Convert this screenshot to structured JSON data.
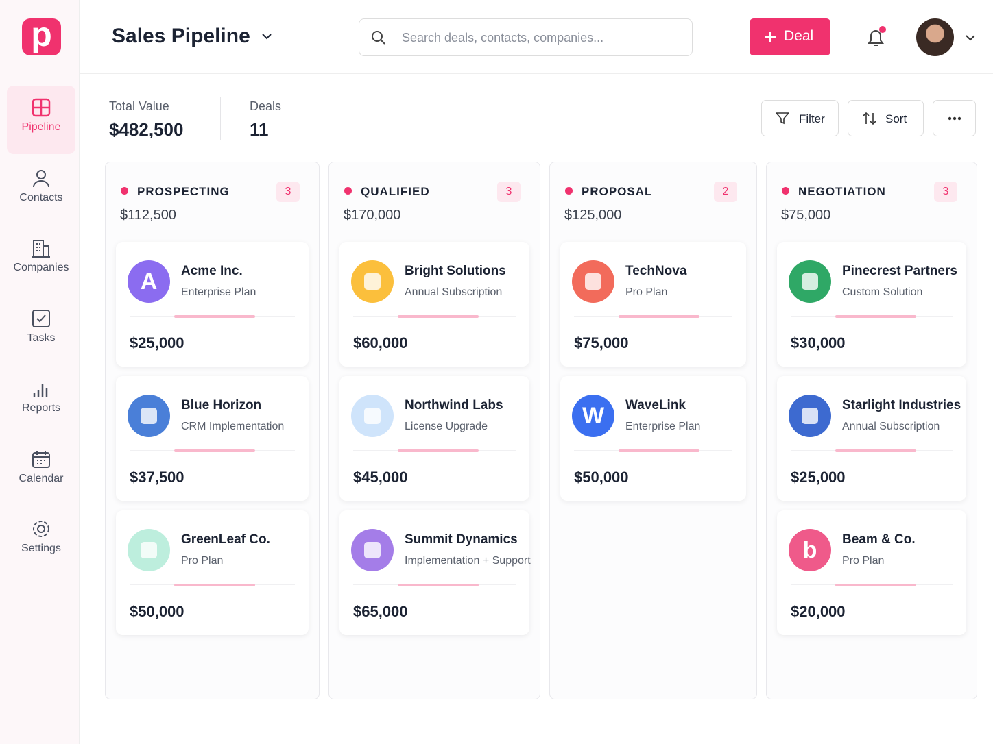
{
  "app": {
    "logo": "p"
  },
  "sidebar": {
    "items": [
      "Pipeline",
      "Contacts",
      "Companies",
      "Tasks",
      "Reports",
      "Calendar",
      "Settings"
    ]
  },
  "header": {
    "title": "Sales Pipeline",
    "search_placeholder": "Search deals, contacts, companies...",
    "new_button": "Deal"
  },
  "summary": [
    {
      "label": "Total Value",
      "value": "$482,500"
    },
    {
      "label": "Deals",
      "value": "11"
    }
  ],
  "toolbar": [
    "Filter",
    "Sort"
  ],
  "columns": [
    {
      "name": "PROSPECTING",
      "count": "3",
      "total": "$112,500",
      "deals": [
        {
          "company": "Acme Inc.",
          "plan": "Enterprise Plan",
          "amount": "$25,000",
          "avatar": "A",
          "color": "#8b6cf0"
        },
        {
          "company": "Blue Horizon",
          "plan": "CRM Implementation",
          "amount": "$37,500",
          "color": "#4a7fd8"
        },
        {
          "company": "GreenLeaf Co.",
          "plan": "Pro Plan",
          "amount": "$50,000",
          "color": "#bdeedd"
        }
      ]
    },
    {
      "name": "QUALIFIED",
      "count": "3",
      "total": "$170,000",
      "deals": [
        {
          "company": "Bright Solutions",
          "plan": "Annual Subscription",
          "amount": "$60,000",
          "color": "#fbbf3c"
        },
        {
          "company": "Northwind Labs",
          "plan": "License Upgrade",
          "amount": "$45,000",
          "color": "#cfe4fb"
        },
        {
          "company": "Summit Dynamics",
          "plan": "Implementation + Support",
          "amount": "$65,000",
          "color": "#a47de8"
        }
      ]
    },
    {
      "name": "PROPOSAL",
      "count": "2",
      "total": "$125,000",
      "deals": [
        {
          "company": "TechNova",
          "plan": "Pro Plan",
          "amount": "$75,000",
          "color": "#f26b5b"
        },
        {
          "company": "WaveLink",
          "plan": "Enterprise Plan",
          "amount": "$50,000",
          "avatar": "W",
          "color": "#3b6ff0"
        }
      ]
    },
    {
      "name": "NEGOTIATION",
      "count": "3",
      "total": "$75,000",
      "deals": [
        {
          "company": "Pinecrest Partners",
          "plan": "Custom Solution",
          "amount": "$30,000",
          "color": "#2fa866"
        },
        {
          "company": "Starlight Industries",
          "plan": "Annual Subscription",
          "amount": "$25,000",
          "color": "#3d6ad0"
        },
        {
          "company": "Beam & Co.",
          "plan": "Pro Plan",
          "amount": "$20,000",
          "avatar": "b",
          "color": "#ef5a8a"
        }
      ]
    }
  ]
}
